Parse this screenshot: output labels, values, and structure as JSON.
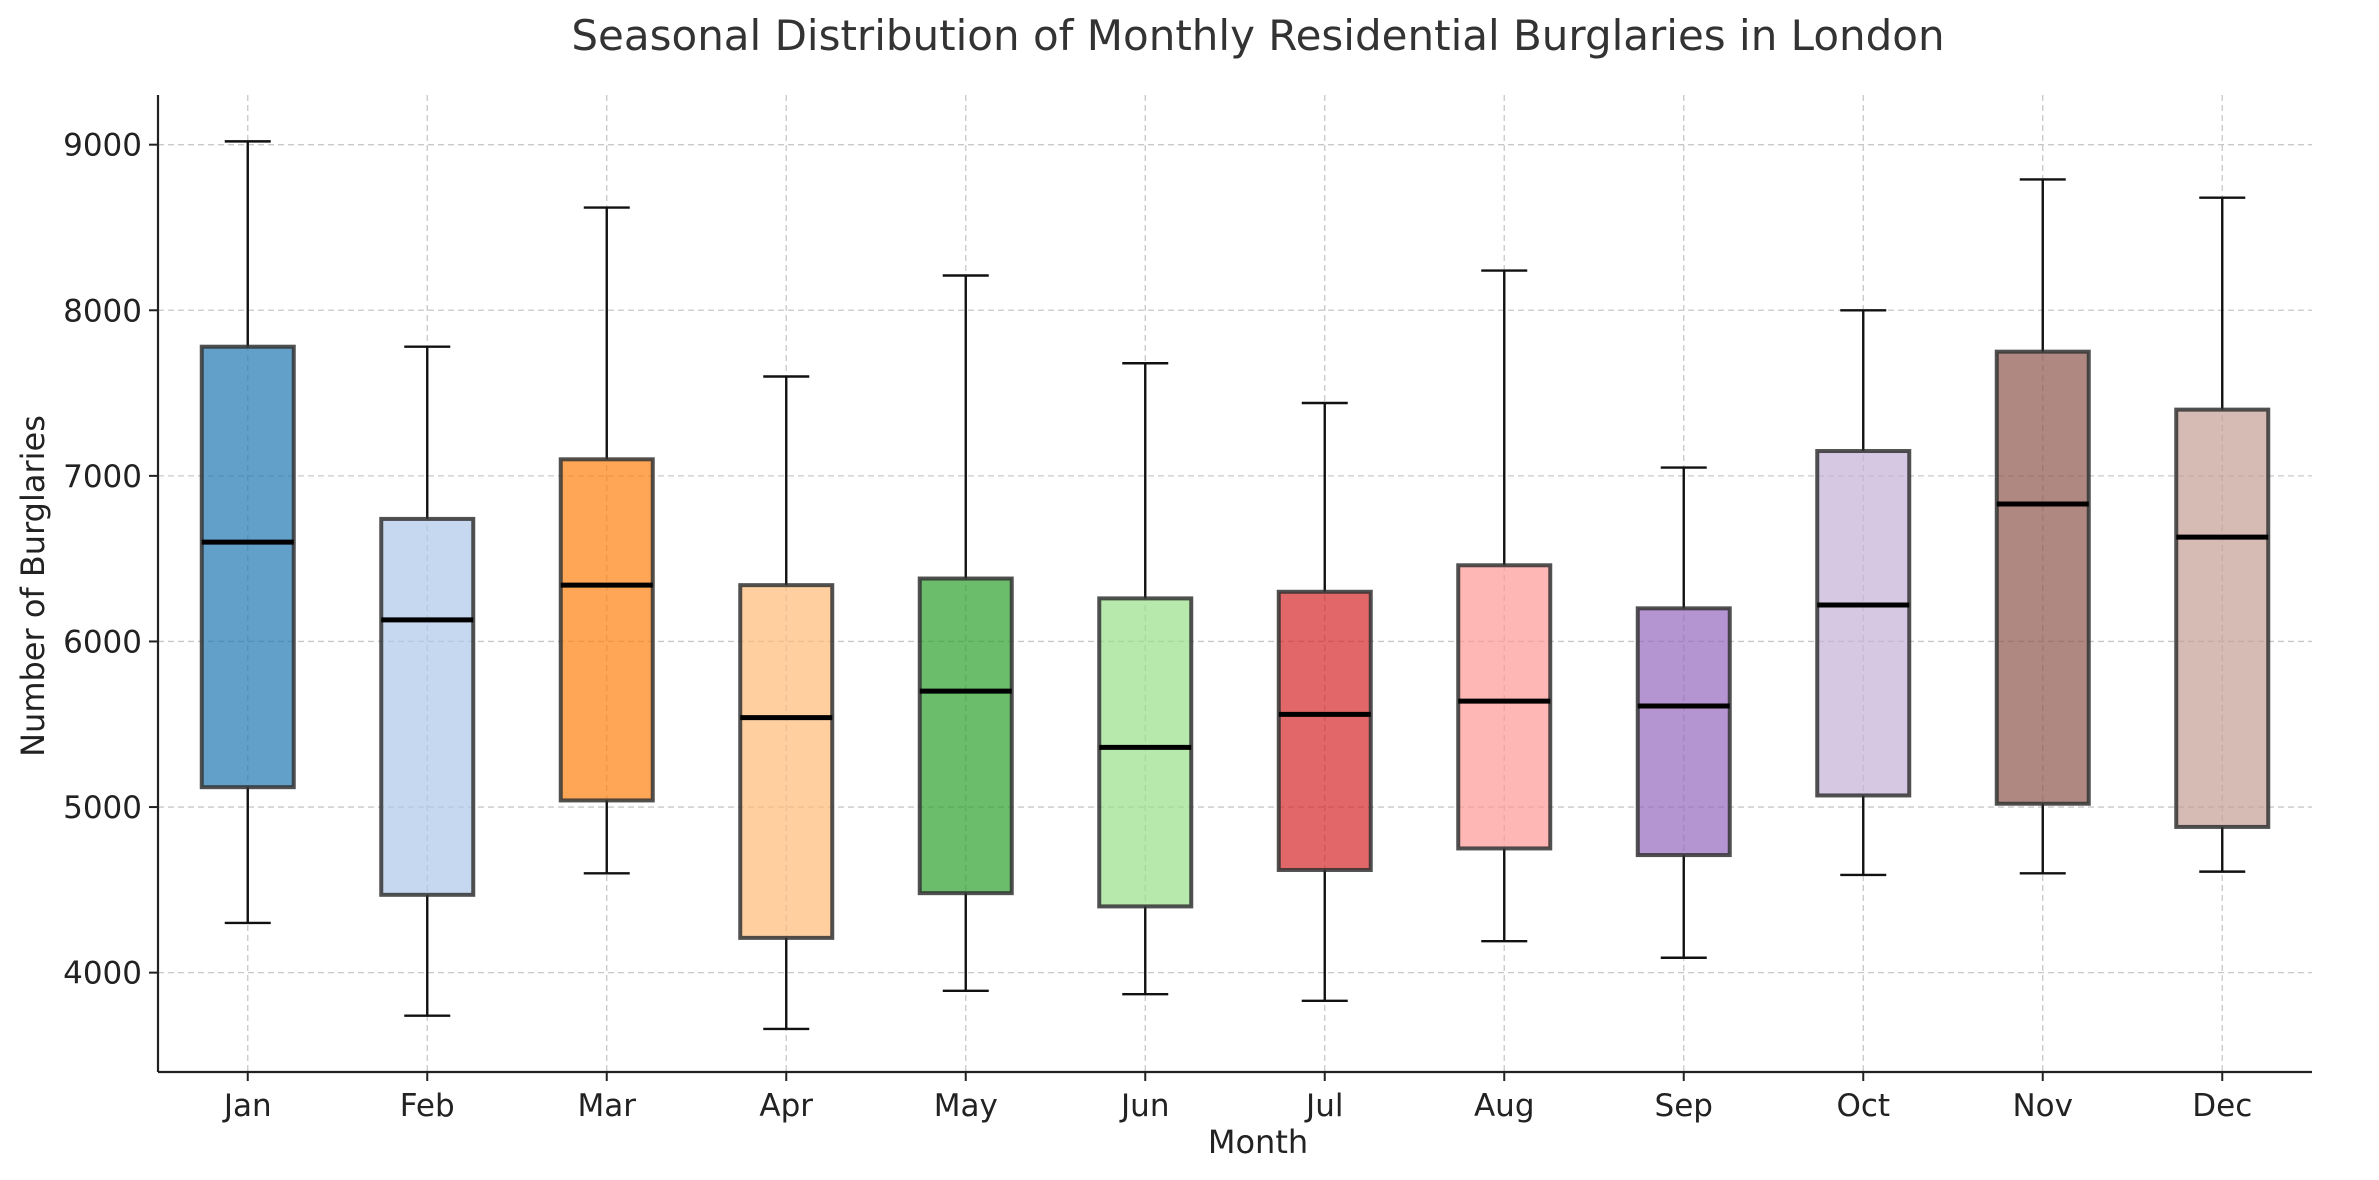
{
  "chart_data": {
    "type": "box",
    "title": "Seasonal Distribution of Monthly Residential Burglaries in London",
    "xlabel": "Month",
    "ylabel": "Number of Burglaries",
    "ylim": [
      3400,
      9300
    ],
    "yticks": [
      4000,
      5000,
      6000,
      7000,
      8000,
      9000
    ],
    "grid": true,
    "categories": [
      "Jan",
      "Feb",
      "Mar",
      "Apr",
      "May",
      "Jun",
      "Jul",
      "Aug",
      "Sep",
      "Oct",
      "Nov",
      "Dec"
    ],
    "boxes": [
      {
        "min": 4300,
        "q1": 5120,
        "median": 6600,
        "q3": 7780,
        "max": 9020,
        "color": "#1f77b4"
      },
      {
        "min": 3740,
        "q1": 4470,
        "median": 6130,
        "q3": 6740,
        "max": 7780,
        "color": "#aec7e8"
      },
      {
        "min": 4600,
        "q1": 5040,
        "median": 6340,
        "q3": 7100,
        "max": 8620,
        "color": "#ff7f0e"
      },
      {
        "min": 3660,
        "q1": 4210,
        "median": 5540,
        "q3": 6340,
        "max": 7600,
        "color": "#ffbb78"
      },
      {
        "min": 3890,
        "q1": 4480,
        "median": 5700,
        "q3": 6380,
        "max": 8210,
        "color": "#2ca02c"
      },
      {
        "min": 3870,
        "q1": 4400,
        "median": 5360,
        "q3": 6260,
        "max": 7680,
        "color": "#98df8a"
      },
      {
        "min": 3830,
        "q1": 4620,
        "median": 5560,
        "q3": 6300,
        "max": 7440,
        "color": "#d62728"
      },
      {
        "min": 4190,
        "q1": 4750,
        "median": 5640,
        "q3": 6460,
        "max": 8240,
        "color": "#ff9896"
      },
      {
        "min": 4090,
        "q1": 4710,
        "median": 5610,
        "q3": 6200,
        "max": 7050,
        "color": "#9467bd"
      },
      {
        "min": 4590,
        "q1": 5070,
        "median": 6220,
        "q3": 7150,
        "max": 8000,
        "color": "#c5b0d5"
      },
      {
        "min": 4600,
        "q1": 5020,
        "median": 6830,
        "q3": 7750,
        "max": 8790,
        "color": "#8c564b"
      },
      {
        "min": 4610,
        "q1": 4880,
        "median": 6630,
        "q3": 7400,
        "max": 8680,
        "color": "#c49c94"
      }
    ]
  }
}
